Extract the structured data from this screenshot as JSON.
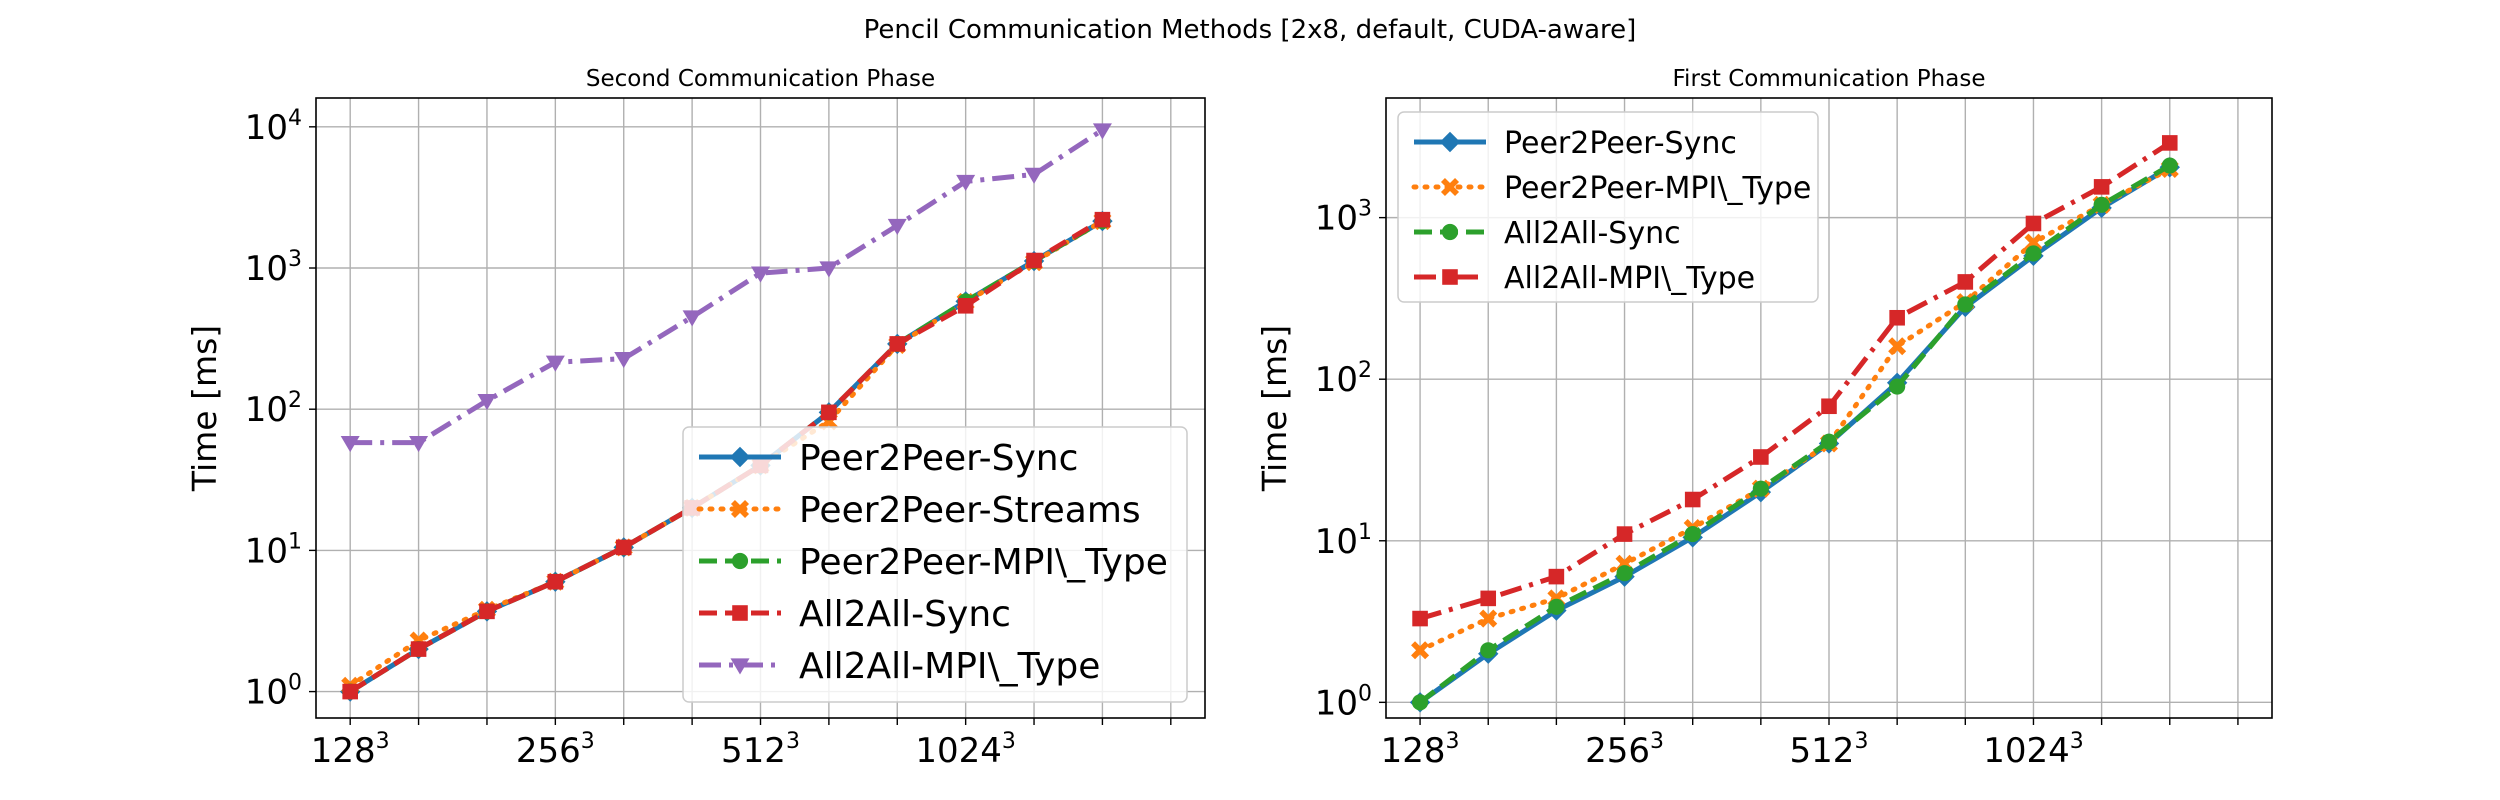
{
  "figure": {
    "suptitle": "Pencil Communication Methods [2x8, default, CUDA-aware]"
  },
  "colors": {
    "blue": "#1f77b4",
    "orange": "#ff7f0e",
    "green": "#2ca02c",
    "red": "#d62728",
    "purple": "#9467bd"
  },
  "chart_data": [
    {
      "type": "line",
      "title": "Second Communication Phase",
      "xlabel": "",
      "ylabel": "Time [ms]",
      "yscale": "log",
      "ylim": [
        0.65,
        16000
      ],
      "xlim": [
        -0.5,
        12.5
      ],
      "x": [
        0,
        1,
        2,
        3,
        4,
        5,
        6,
        7,
        8,
        9,
        10,
        11,
        12
      ],
      "x_ticks": [
        {
          "x": 0,
          "base": "128",
          "exp": "3"
        },
        {
          "x": 3,
          "base": "256",
          "exp": "3"
        },
        {
          "x": 6,
          "base": "512",
          "exp": "3"
        },
        {
          "x": 9,
          "base": "1024",
          "exp": "3"
        }
      ],
      "y_ticks": [
        {
          "v": 1,
          "base": "10",
          "exp": "0"
        },
        {
          "v": 10,
          "base": "10",
          "exp": "1"
        },
        {
          "v": 100,
          "base": "10",
          "exp": "2"
        },
        {
          "v": 1000,
          "base": "10",
          "exp": "3"
        },
        {
          "v": 10000,
          "base": "10",
          "exp": "4"
        }
      ],
      "grid": true,
      "legend_position": "lower-right",
      "series": [
        {
          "name": "Peer2Peer-Sync",
          "color": "#1f77b4",
          "linestyle": "solid",
          "marker": "diamond",
          "values": [
            1.0,
            2.0,
            3.7,
            6.0,
            10.5,
            20,
            40,
            95,
            290,
            580,
            1120,
            2150,
            null
          ]
        },
        {
          "name": "Peer2Peer-Streams",
          "color": "#ff7f0e",
          "linestyle": "dotted",
          "marker": "x",
          "values": [
            1.1,
            2.3,
            3.8,
            6.0,
            10.5,
            20,
            40,
            82,
            285,
            575,
            1100,
            2150,
            null
          ]
        },
        {
          "name": "Peer2Peer-MPI\\_Type",
          "color": "#2ca02c",
          "linestyle": "dashed",
          "marker": "circle",
          "values": [
            1.0,
            2.0,
            3.7,
            6.0,
            10.5,
            20,
            40,
            95,
            290,
            580,
            1120,
            2150,
            null
          ]
        },
        {
          "name": "All2All-Sync",
          "color": "#d62728",
          "linestyle": "dashed",
          "marker": "square",
          "values": [
            1.0,
            2.0,
            3.7,
            6.0,
            10.5,
            20,
            40,
            95,
            290,
            540,
            1130,
            2200,
            null
          ]
        },
        {
          "name": "All2All-MPI\\_Type",
          "color": "#9467bd",
          "linestyle": "dashdot",
          "marker": "triangle-down",
          "values": [
            58,
            58,
            115,
            215,
            228,
            450,
            920,
            1000,
            2000,
            4100,
            4600,
            9500,
            null
          ]
        }
      ]
    },
    {
      "type": "line",
      "title": "First Communication Phase",
      "xlabel": "",
      "ylabel": "Time [ms]",
      "yscale": "log",
      "ylim": [
        0.8,
        5500
      ],
      "xlim": [
        -0.5,
        12.5
      ],
      "x": [
        0,
        1,
        2,
        3,
        4,
        5,
        6,
        7,
        8,
        9,
        10,
        11,
        12
      ],
      "x_ticks": [
        {
          "x": 0,
          "base": "128",
          "exp": "3"
        },
        {
          "x": 3,
          "base": "256",
          "exp": "3"
        },
        {
          "x": 6,
          "base": "512",
          "exp": "3"
        },
        {
          "x": 9,
          "base": "1024",
          "exp": "3"
        }
      ],
      "y_ticks": [
        {
          "v": 1,
          "base": "10",
          "exp": "0"
        },
        {
          "v": 10,
          "base": "10",
          "exp": "1"
        },
        {
          "v": 100,
          "base": "10",
          "exp": "2"
        },
        {
          "v": 1000,
          "base": "10",
          "exp": "3"
        }
      ],
      "grid": true,
      "legend_position": "upper-left",
      "series": [
        {
          "name": "Peer2Peer-Sync",
          "color": "#1f77b4",
          "linestyle": "solid",
          "marker": "diamond",
          "values": [
            1.0,
            2.0,
            3.7,
            6.0,
            10.5,
            20,
            40,
            95,
            280,
            580,
            1150,
            2050,
            null
          ]
        },
        {
          "name": "Peer2Peer-MPI\\_Type",
          "color": "#ff7f0e",
          "linestyle": "dotted",
          "marker": "x",
          "values": [
            2.1,
            3.3,
            4.4,
            7.2,
            12,
            21,
            40,
            160,
            300,
            700,
            1200,
            2000,
            null
          ]
        },
        {
          "name": "All2All-Sync",
          "color": "#2ca02c",
          "linestyle": "dashed",
          "marker": "circle",
          "values": [
            1.0,
            2.1,
            3.9,
            6.3,
            11,
            21,
            41,
            90,
            290,
            600,
            1200,
            2100,
            null
          ]
        },
        {
          "name": "All2All-MPI\\_Type",
          "color": "#d62728",
          "linestyle": "dashdot",
          "marker": "square",
          "values": [
            3.3,
            4.4,
            6.0,
            11,
            18,
            33,
            68,
            240,
            400,
            920,
            1550,
            2900,
            null
          ]
        }
      ]
    }
  ]
}
